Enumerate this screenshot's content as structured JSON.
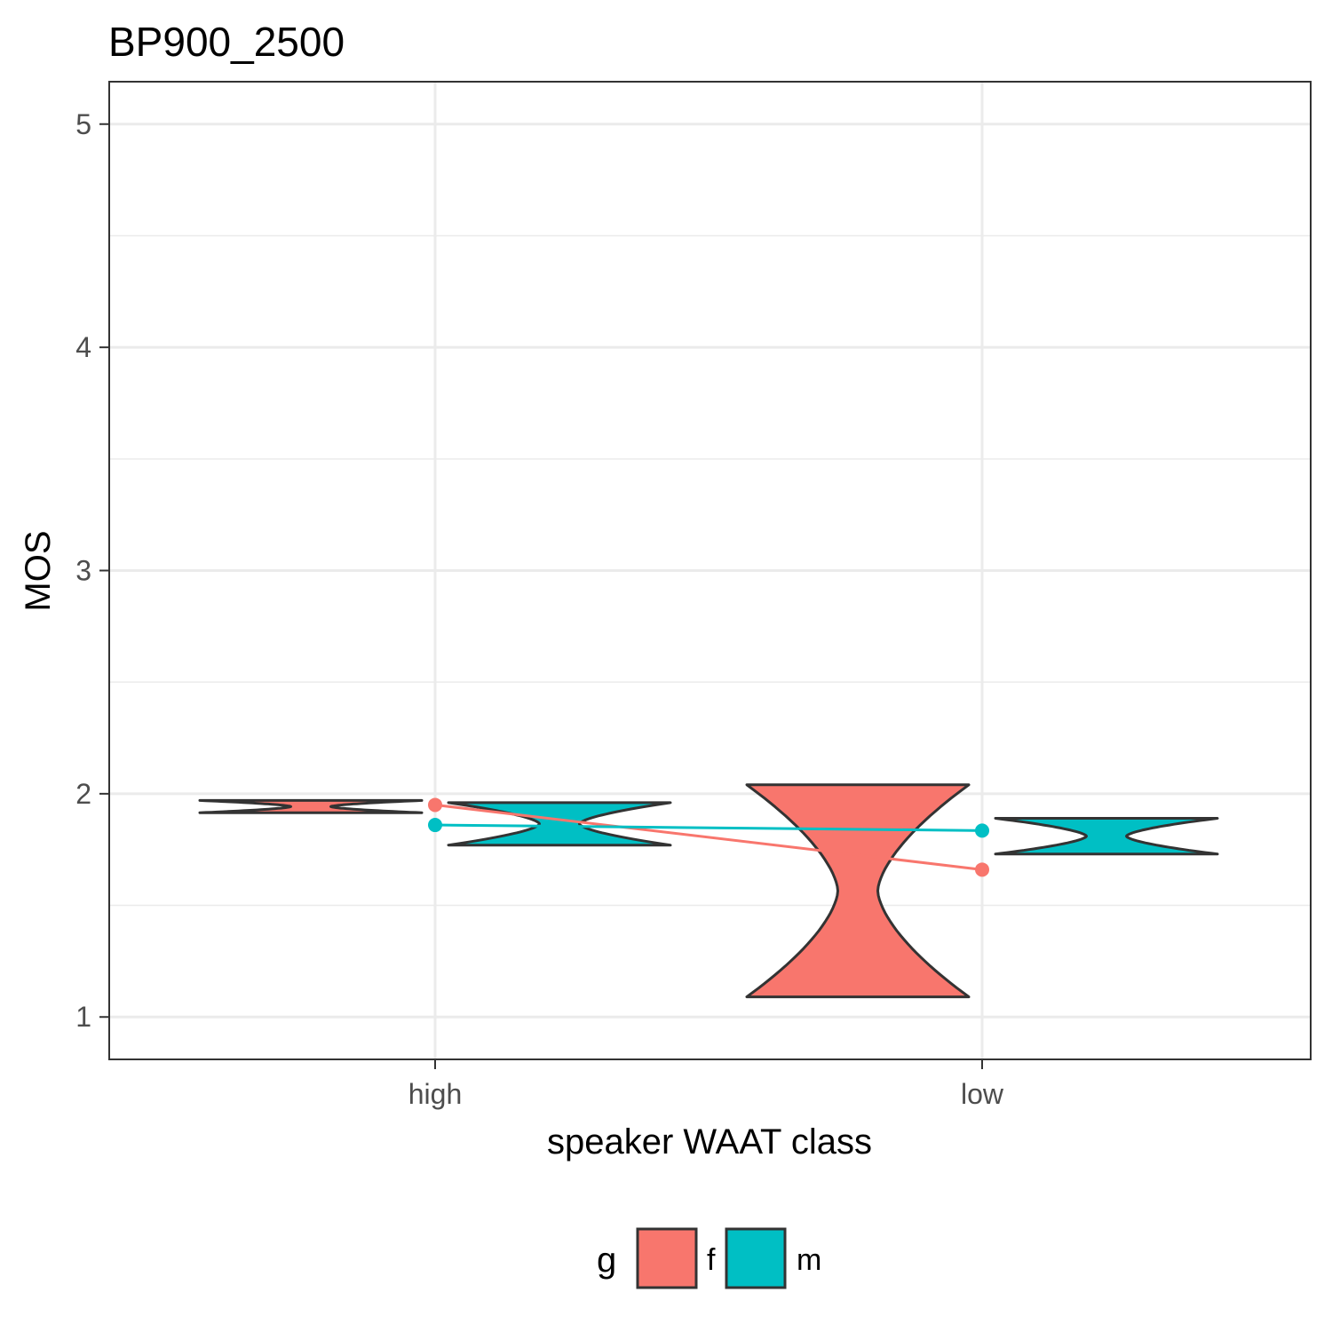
{
  "chart_data": {
    "type": "violin",
    "title": "BP900_2500",
    "xlabel": "speaker WAAT class",
    "ylabel": "MOS",
    "categories": [
      "high",
      "low"
    ],
    "ylim": [
      0.81,
      5.19
    ],
    "yticks": [
      1,
      2,
      3,
      4,
      5
    ],
    "grid": true,
    "legend": {
      "title": "g",
      "position": "bottom",
      "entries": [
        {
          "label": "f",
          "color": "#F8766D"
        },
        {
          "label": "m",
          "color": "#00BFC4"
        }
      ]
    },
    "series": [
      {
        "name": "f",
        "color": "#F8766D",
        "violins": [
          {
            "category": "high",
            "min": 1.915,
            "max": 1.97
          },
          {
            "category": "low",
            "min": 1.09,
            "max": 2.04
          }
        ],
        "means": [
          1.95,
          1.66
        ]
      },
      {
        "name": "m",
        "color": "#00BFC4",
        "violins": [
          {
            "category": "high",
            "min": 1.77,
            "max": 1.96
          },
          {
            "category": "low",
            "min": 1.73,
            "max": 1.89
          }
        ],
        "means": [
          1.86,
          1.835
        ]
      }
    ]
  }
}
